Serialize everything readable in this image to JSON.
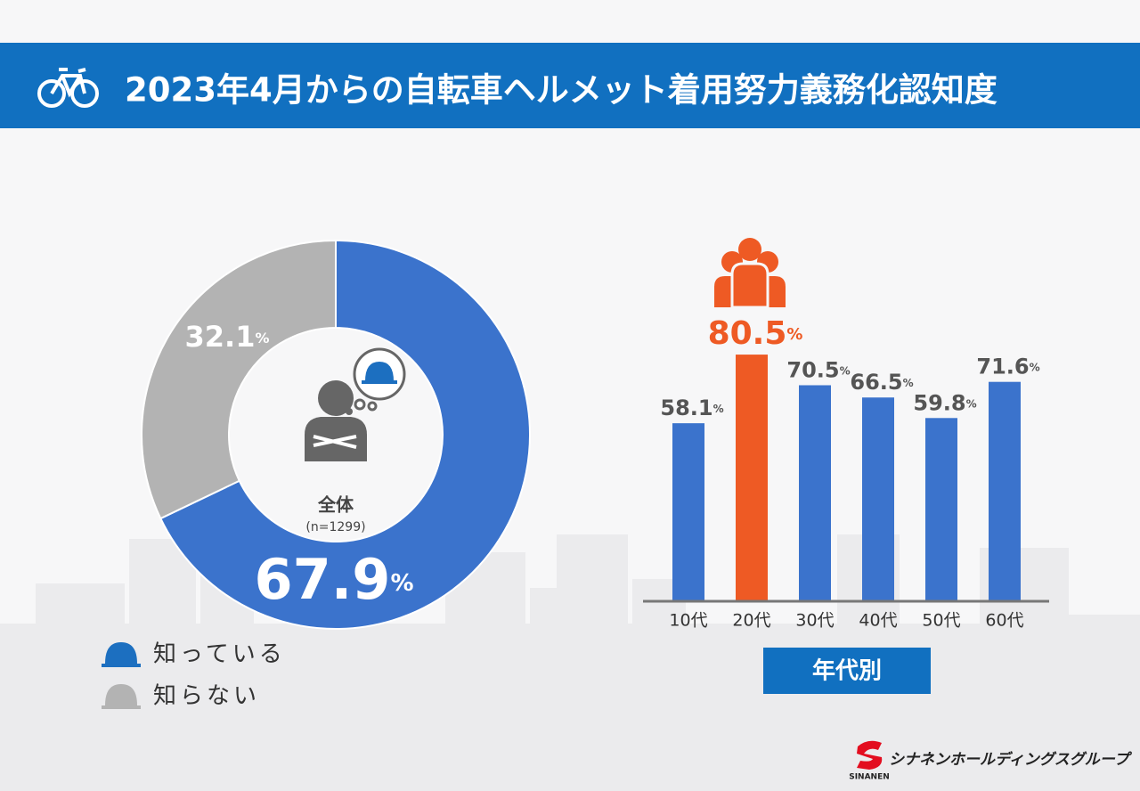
{
  "header": {
    "title": "2023年4月からの自転車ヘルメット着用努力義務化認知度"
  },
  "chart_data": [
    {
      "type": "pie",
      "categories": [
        "知っている",
        "知らない"
      ],
      "values": [
        67.9,
        32.1
      ],
      "value_labels": [
        "67.9%",
        "32.1%"
      ],
      "colors": [
        "#3b73cc",
        "#b3b3b3"
      ],
      "center_label": "全体",
      "center_note": "(n=1299)"
    },
    {
      "type": "bar",
      "categories": [
        "10代",
        "20代",
        "30代",
        "40代",
        "50代",
        "60代"
      ],
      "values": [
        58.1,
        80.5,
        70.5,
        66.5,
        59.8,
        71.6
      ],
      "value_labels": [
        "58.1%",
        "80.5%",
        "70.5%",
        "66.5%",
        "59.8%",
        "71.6%"
      ],
      "colors": [
        "#3b73cc",
        "#ee5a24",
        "#3b73cc",
        "#3b73cc",
        "#3b73cc",
        "#3b73cc"
      ],
      "xlabel": "年代別",
      "ylim": [
        0,
        100
      ]
    }
  ],
  "logo": {
    "name": "シナネンホールディングスグループ",
    "mark": "SINANEN"
  }
}
